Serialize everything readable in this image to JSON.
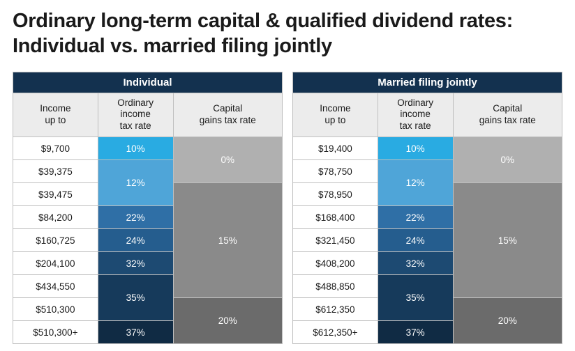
{
  "title": "Ordinary long-term capital & qualified dividend rates: Individual vs. married filing jointly",
  "colors": {
    "header_bg": "#13314f",
    "subheader_bg": "#ececec",
    "rate_10": "#29abe2",
    "rate_12": "#4fa5d8",
    "rate_22": "#2f6fa6",
    "rate_24": "#255d8e",
    "rate_32": "#1d4a72",
    "rate_35": "#163a5b",
    "rate_37": "#102b44",
    "cap_0": "#b0b0b0",
    "cap_15": "#8a8a8a",
    "cap_20": "#6b6b6b",
    "border": "#bfbfbf"
  },
  "column_headers": {
    "income": "Income up to",
    "ordinary": "Ordinary income tax rate",
    "capital": "Capital gains tax rate"
  },
  "tables": [
    {
      "caption": "Individual",
      "rows": [
        {
          "income": "$9,700",
          "rate": "10%",
          "rate_color": "rate_10",
          "rate_span": 1,
          "cap": "0%",
          "cap_color": "cap_0",
          "cap_span": 2
        },
        {
          "income": "$39,375",
          "rate": "12%",
          "rate_color": "rate_12",
          "rate_span": 2
        },
        {
          "income": "$39,475",
          "cap": "15%",
          "cap_color": "cap_15",
          "cap_span": 5
        },
        {
          "income": "$84,200",
          "rate": "22%",
          "rate_color": "rate_22",
          "rate_span": 1
        },
        {
          "income": "$160,725",
          "rate": "24%",
          "rate_color": "rate_24",
          "rate_span": 1
        },
        {
          "income": "$204,100",
          "rate": "32%",
          "rate_color": "rate_32",
          "rate_span": 1
        },
        {
          "income": "$434,550",
          "rate": "35%",
          "rate_color": "rate_35",
          "rate_span": 2
        },
        {
          "income": "$510,300",
          "cap": "20%",
          "cap_color": "cap_20",
          "cap_span": 2
        },
        {
          "income": "$510,300+",
          "rate": "37%",
          "rate_color": "rate_37",
          "rate_span": 1
        }
      ]
    },
    {
      "caption": "Married filing jointly",
      "rows": [
        {
          "income": "$19,400",
          "rate": "10%",
          "rate_color": "rate_10",
          "rate_span": 1,
          "cap": "0%",
          "cap_color": "cap_0",
          "cap_span": 2
        },
        {
          "income": "$78,750",
          "rate": "12%",
          "rate_color": "rate_12",
          "rate_span": 2
        },
        {
          "income": "$78,950",
          "cap": "15%",
          "cap_color": "cap_15",
          "cap_span": 5
        },
        {
          "income": "$168,400",
          "rate": "22%",
          "rate_color": "rate_22",
          "rate_span": 1
        },
        {
          "income": "$321,450",
          "rate": "24%",
          "rate_color": "rate_24",
          "rate_span": 1
        },
        {
          "income": "$408,200",
          "rate": "32%",
          "rate_color": "rate_32",
          "rate_span": 1
        },
        {
          "income": "$488,850",
          "rate": "35%",
          "rate_color": "rate_35",
          "rate_span": 2
        },
        {
          "income": "$612,350",
          "cap": "20%",
          "cap_color": "cap_20",
          "cap_span": 2
        },
        {
          "income": "$612,350+",
          "rate": "37%",
          "rate_color": "rate_37",
          "rate_span": 1
        }
      ]
    }
  ]
}
